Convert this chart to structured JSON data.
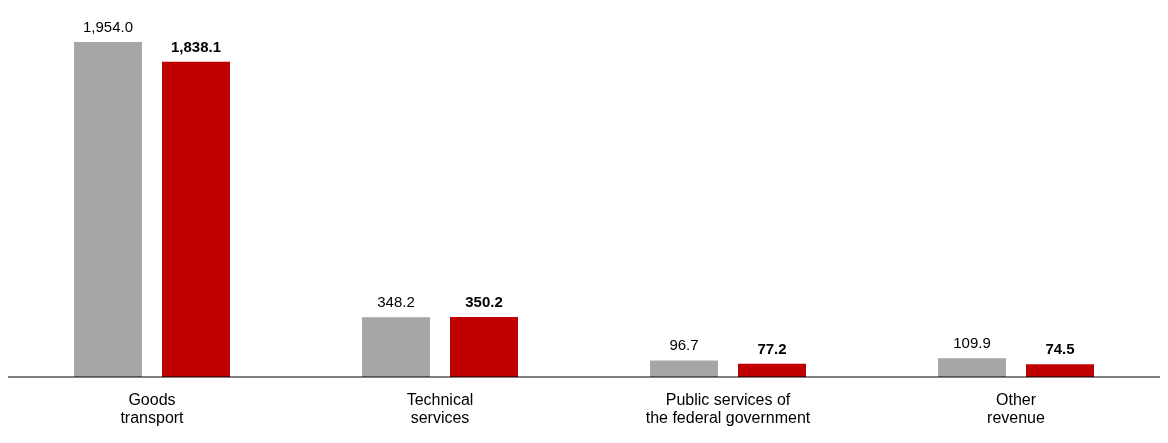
{
  "chart_data": {
    "type": "bar",
    "categories": [
      "Goods transport",
      "Technical services",
      "Public services of the federal government",
      "Other revenue"
    ],
    "series": [
      {
        "color": "#a6a6a6",
        "values": [
          1954.0,
          348.2,
          96.7,
          109.9
        ],
        "value_labels": [
          "1,954.0",
          "348.2",
          "96.7",
          "109.9"
        ]
      },
      {
        "color": "#c00000",
        "values": [
          1838.1,
          350.2,
          77.2,
          74.5
        ],
        "value_labels": [
          "1,838.1",
          "350.2",
          "77.2",
          "74.5"
        ]
      }
    ],
    "grid": false,
    "legend": false
  }
}
